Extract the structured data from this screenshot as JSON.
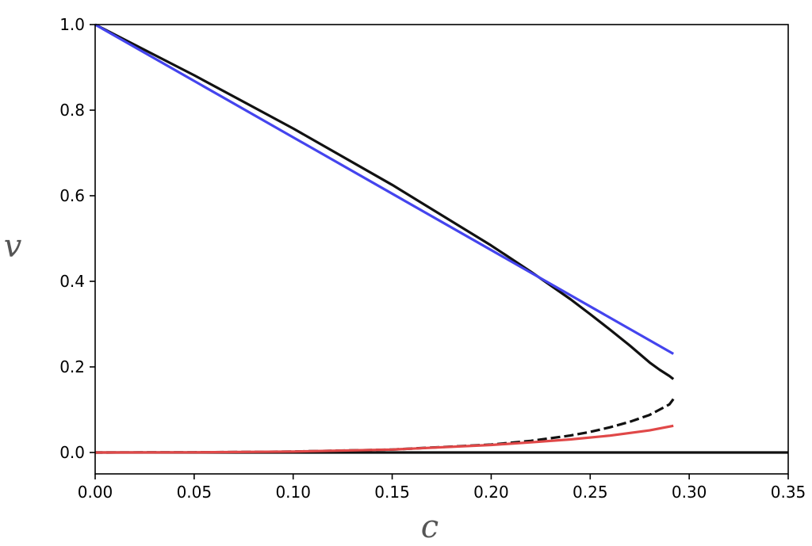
{
  "chart_data": {
    "type": "line",
    "title": "",
    "xlabel": "c",
    "ylabel": "v",
    "xlim": [
      0.0,
      0.35
    ],
    "ylim": [
      -0.05,
      1.0
    ],
    "x_ticks": [
      "0.00",
      "0.05",
      "0.10",
      "0.15",
      "0.20",
      "0.25",
      "0.30",
      "0.35"
    ],
    "y_ticks": [
      "0.0",
      "0.2",
      "0.4",
      "0.6",
      "0.8",
      "1.0"
    ],
    "grid": false,
    "legend": "none",
    "series": [
      {
        "style": "solid",
        "color": "#111111",
        "points": [
          [
            0.0,
            1.0
          ],
          [
            0.05,
            0.8814
          ],
          [
            0.1,
            0.7573
          ],
          [
            0.15,
            0.6254
          ],
          [
            0.2,
            0.4837
          ],
          [
            0.22,
            0.4226
          ],
          [
            0.24,
            0.3583
          ],
          [
            0.25,
            0.3232
          ],
          [
            0.26,
            0.2871
          ],
          [
            0.27,
            0.25
          ],
          [
            0.28,
            0.2103
          ],
          [
            0.285,
            0.1935
          ],
          [
            0.29,
            0.1787
          ],
          [
            0.292,
            0.1714
          ]
        ]
      },
      {
        "style": "dashed",
        "color": "#111111",
        "points": [
          [
            0.292,
            0.1249
          ],
          [
            0.29,
            0.1124
          ],
          [
            0.28,
            0.0878
          ],
          [
            0.27,
            0.0716
          ],
          [
            0.26,
            0.0588
          ],
          [
            0.25,
            0.0481
          ],
          [
            0.24,
            0.0397
          ],
          [
            0.22,
            0.0273
          ],
          [
            0.2,
            0.0185
          ],
          [
            0.15,
            0.0069
          ],
          [
            0.1,
            0.0022
          ],
          [
            0.05,
            0.0004
          ],
          [
            0.0,
            0.0
          ]
        ]
      },
      {
        "style": "solid",
        "color": "#111111",
        "points": [
          [
            0.0,
            0.0
          ],
          [
            0.35,
            0.0
          ]
        ]
      },
      {
        "style": "solid",
        "color": "#4444ee",
        "points": [
          [
            0.0,
            1.0
          ],
          [
            0.292,
            0.2306
          ]
        ]
      },
      {
        "style": "solid",
        "color": "#e04848",
        "points": [
          [
            0.0,
            0.0
          ],
          [
            0.05,
            0.0004
          ],
          [
            0.1,
            0.0022
          ],
          [
            0.15,
            0.0069
          ],
          [
            0.2,
            0.0176
          ],
          [
            0.22,
            0.0237
          ],
          [
            0.24,
            0.0306
          ],
          [
            0.26,
            0.0394
          ],
          [
            0.28,
            0.0517
          ],
          [
            0.292,
            0.0625
          ]
        ]
      }
    ]
  }
}
